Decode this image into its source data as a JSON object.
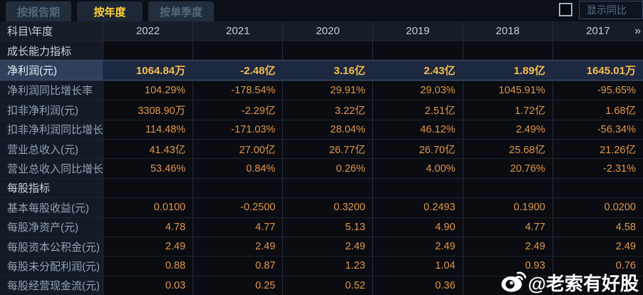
{
  "tabs": [
    {
      "label": "按报告期",
      "active": false
    },
    {
      "label": "按年度",
      "active": true
    },
    {
      "label": "按单季度",
      "active": false
    }
  ],
  "controls": {
    "show_yoy_label": "显示同比"
  },
  "table": {
    "corner_header": "科目\\年度",
    "years": [
      "2022",
      "2021",
      "2020",
      "2019",
      "2018",
      "2017"
    ],
    "more_icon": "»",
    "rows": [
      {
        "type": "section",
        "label": "成长能力指标",
        "values": [
          "",
          "",
          "",
          "",
          "",
          ""
        ]
      },
      {
        "type": "data",
        "highlight": true,
        "label": "净利润(元)",
        "values": [
          "1064.84万",
          "-2.48亿",
          "3.16亿",
          "2.43亿",
          "1.89亿",
          "1645.01万"
        ]
      },
      {
        "type": "data",
        "label": "净利润同比增长率",
        "values": [
          "104.29%",
          "-178.54%",
          "29.91%",
          "29.03%",
          "1045.91%",
          "-95.65%"
        ]
      },
      {
        "type": "data",
        "label": "扣非净利润(元)",
        "values": [
          "3308.90万",
          "-2.29亿",
          "3.22亿",
          "2.51亿",
          "1.72亿",
          "1.68亿"
        ]
      },
      {
        "type": "data",
        "label": "扣非净利润同比增长率",
        "values": [
          "114.48%",
          "-171.03%",
          "28.04%",
          "46.12%",
          "2.49%",
          "-56.34%"
        ]
      },
      {
        "type": "data",
        "label": "营业总收入(元)",
        "values": [
          "41.43亿",
          "27.00亿",
          "26.77亿",
          "26.70亿",
          "25.68亿",
          "21.26亿"
        ]
      },
      {
        "type": "data",
        "label": "营业总收入同比增长率",
        "values": [
          "53.46%",
          "0.84%",
          "0.26%",
          "4.00%",
          "20.76%",
          "-2.31%"
        ]
      },
      {
        "type": "section",
        "label": "每股指标",
        "values": [
          "",
          "",
          "",
          "",
          "",
          ""
        ]
      },
      {
        "type": "data",
        "label": "基本每股收益(元)",
        "values": [
          "0.0100",
          "-0.2500",
          "0.3200",
          "0.2493",
          "0.1900",
          "0.0200"
        ]
      },
      {
        "type": "data",
        "label": "每股净资产(元)",
        "values": [
          "4.78",
          "4.77",
          "5.13",
          "4.90",
          "4.77",
          "4.58"
        ]
      },
      {
        "type": "data",
        "label": "每股资本公积金(元)",
        "values": [
          "2.49",
          "2.49",
          "2.49",
          "2.49",
          "2.49",
          "2.49"
        ]
      },
      {
        "type": "data",
        "label": "每股未分配利润(元)",
        "values": [
          "0.88",
          "0.87",
          "1.23",
          "1.04",
          "0.93",
          "0.76"
        ]
      },
      {
        "type": "data",
        "label": "每股经营现金流(元)",
        "values": [
          "0.03",
          "0.25",
          "0.52",
          "0.36",
          "",
          ""
        ]
      }
    ]
  },
  "watermark": {
    "text": "@老索有好股"
  },
  "colors": {
    "tab_active_text": "#ffd234",
    "value_orange": "#e1974a",
    "highlight_gold": "#f6ba4e",
    "highlight_row_bg": "#1d2940",
    "header_bg": "#161d29",
    "label_col_bg": "#141b26"
  }
}
